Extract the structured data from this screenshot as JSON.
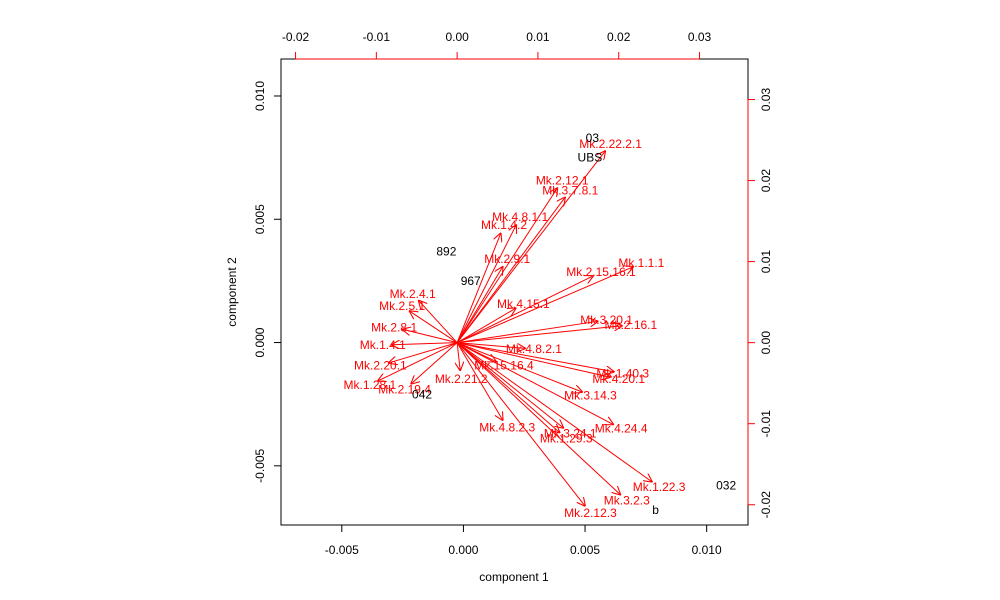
{
  "chart_data": {
    "type": "scatter",
    "subtype": "biplot",
    "xlabel": "component 1",
    "ylabel": "component 2",
    "xlim": [
      -0.0075,
      0.0117
    ],
    "ylim": [
      -0.0074,
      0.0115
    ],
    "top_xlim": [
      -0.0218,
      0.036
    ],
    "right_ylim": [
      -0.0225,
      0.035
    ],
    "x_ticks": [
      -0.005,
      0.0,
      0.005,
      0.01
    ],
    "x_tick_labels": [
      "-0.005",
      "0.000",
      "0.005",
      "0.010"
    ],
    "y_ticks": [
      -0.005,
      0.0,
      0.005,
      0.01
    ],
    "y_tick_labels": [
      "-0.005",
      "0.000",
      "0.005",
      "0.010"
    ],
    "top_ticks": [
      -0.02,
      -0.01,
      0.0,
      0.01,
      0.02,
      0.03
    ],
    "top_tick_labels": [
      "-0.02",
      "-0.01",
      "0.00",
      "0.01",
      "0.02",
      "0.03"
    ],
    "right_ticks": [
      -0.02,
      -0.01,
      0.0,
      0.01,
      0.02,
      0.03
    ],
    "right_tick_labels": [
      "-0.02",
      "-0.01",
      "0.00",
      "0.01",
      "0.02",
      "0.03"
    ],
    "colors": {
      "observations": "#000000",
      "variables": "#ff0000",
      "secondary_axes": "#ff0000"
    },
    "observations": [
      {
        "label": "03",
        "x": 0.0053,
        "y": 0.0083
      },
      {
        "label": "UBS",
        "x": 0.0052,
        "y": 0.0075
      },
      {
        "label": "032",
        "x": 0.0108,
        "y": -0.0058
      },
      {
        "label": "b",
        "x": 0.0079,
        "y": -0.0068
      },
      {
        "label": "892",
        "x": -0.0007,
        "y": 0.0037
      },
      {
        "label": "967",
        "x": 0.0003,
        "y": 0.0025
      },
      {
        "label": "042",
        "x": -0.0017,
        "y": -0.0021
      }
    ],
    "variables": [
      {
        "label": "Mk.2.22.2.1",
        "x": 0.019,
        "y": 0.0245
      },
      {
        "label": "Mk.2.12.1",
        "x": 0.013,
        "y": 0.02
      },
      {
        "label": "Mk.3.7.8.1",
        "x": 0.014,
        "y": 0.0188
      },
      {
        "label": "Mk.4.8.1.1",
        "x": 0.0078,
        "y": 0.0155
      },
      {
        "label": "Mk.1.4.2",
        "x": 0.0058,
        "y": 0.0145
      },
      {
        "label": "Mk.1.1.1",
        "x": 0.0228,
        "y": 0.0098
      },
      {
        "label": "Mk.2.15.16.1",
        "x": 0.0178,
        "y": 0.0087
      },
      {
        "label": "Mk.2.9.1",
        "x": 0.0062,
        "y": 0.0103
      },
      {
        "label": "Mk.4.15.1",
        "x": 0.0082,
        "y": 0.0048
      },
      {
        "label": "Mk.3.20.1",
        "x": 0.0185,
        "y": 0.0028
      },
      {
        "label": "Mk.2.16.1",
        "x": 0.0215,
        "y": 0.0022
      },
      {
        "label": "Mk.4.8.2.1",
        "x": 0.0095,
        "y": -0.0008
      },
      {
        "label": "Mk.1.40.3",
        "x": 0.0205,
        "y": -0.0038
      },
      {
        "label": "Mk.4.20.1",
        "x": 0.02,
        "y": -0.0045
      },
      {
        "label": "Mk.15.16.4",
        "x": 0.0058,
        "y": -0.0028
      },
      {
        "label": "Mk.3.14.3",
        "x": 0.0165,
        "y": -0.0065
      },
      {
        "label": "Mk.4.8.2.3",
        "x": 0.0062,
        "y": -0.0105
      },
      {
        "label": "Mk.3.24.1",
        "x": 0.014,
        "y": -0.0112
      },
      {
        "label": "Mk.4.24.4",
        "x": 0.0203,
        "y": -0.0106
      },
      {
        "label": "Mk.1.29.3",
        "x": 0.0135,
        "y": -0.0118
      },
      {
        "label": "Mk.3.2.3",
        "x": 0.021,
        "y": -0.0195
      },
      {
        "label": "Mk.2.12.3",
        "x": 0.0165,
        "y": -0.021
      },
      {
        "label": "Mk.1.22.3",
        "x": 0.025,
        "y": -0.0178
      },
      {
        "label": "Mk.2.4.1",
        "x": -0.0055,
        "y": 0.006
      },
      {
        "label": "Mk.2.5.1",
        "x": -0.0068,
        "y": 0.0045
      },
      {
        "label": "Mk.2.8.1",
        "x": -0.0078,
        "y": 0.0019
      },
      {
        "label": "Mk.1.4.1",
        "x": -0.0092,
        "y": -0.0003
      },
      {
        "label": "Mk.2.20.1",
        "x": -0.0095,
        "y": -0.0028
      },
      {
        "label": "Mk.1.28.1",
        "x": -0.0108,
        "y": -0.0052
      },
      {
        "label": "Mk.2.19.4",
        "x": -0.0065,
        "y": -0.0058
      },
      {
        "label": "Mk.2.21.2",
        "x": 0.0005,
        "y": -0.0045
      }
    ]
  }
}
